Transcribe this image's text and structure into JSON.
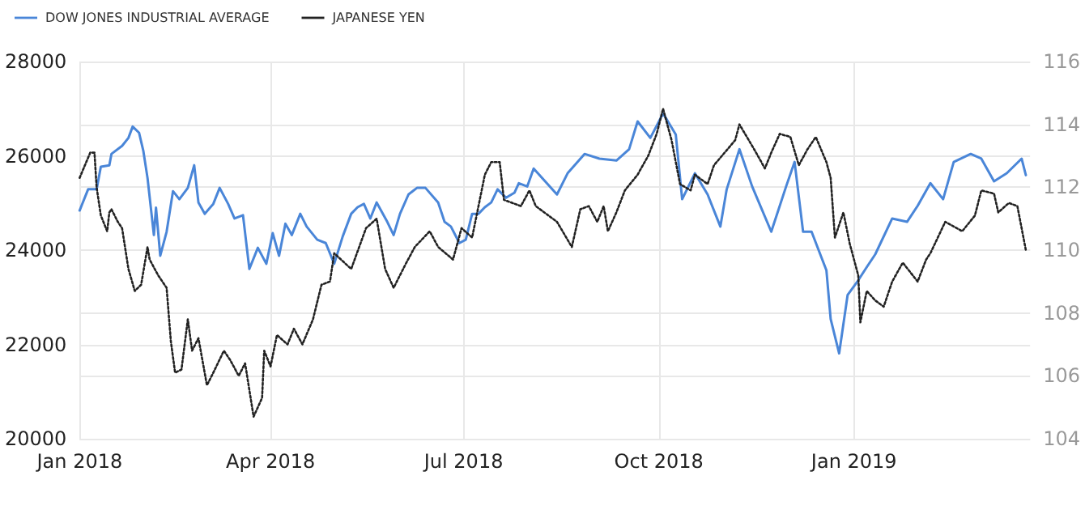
{
  "chart_data": {
    "type": "line",
    "legend": "top left",
    "grid": true,
    "marker": "none",
    "xlim": [
      "2018-01-01",
      "2019-03-25"
    ],
    "xticks": [
      {
        "value": "2018-01-01",
        "label": "Jan 2018"
      },
      {
        "value": "2018-04-01",
        "label": "Apr 2018"
      },
      {
        "value": "2018-07-01",
        "label": "Jul 2018"
      },
      {
        "value": "2018-10-01",
        "label": "Oct 2018"
      },
      {
        "value": "2019-01-01",
        "label": "Jan 2019"
      }
    ],
    "ylim": [
      20000,
      28000
    ],
    "yticks": [
      20000,
      22000,
      24000,
      26000,
      28000
    ],
    "y2lim": [
      104,
      116
    ],
    "y2ticks": [
      104,
      106,
      108,
      110,
      112,
      114,
      116
    ],
    "series": [
      {
        "name": "DOW JONES INDUSTRIAL AVERAGE",
        "color": "#4a86d8",
        "line_style": "solid",
        "x": [
          "2018-01-01",
          "2018-01-05",
          "2018-01-09",
          "2018-01-11",
          "2018-01-15",
          "2018-01-16",
          "2018-01-21",
          "2018-01-24",
          "2018-01-26",
          "2018-01-29",
          "2018-01-31",
          "2018-02-02",
          "2018-02-05",
          "2018-02-06",
          "2018-02-08",
          "2018-02-11",
          "2018-02-14",
          "2018-02-17",
          "2018-02-21",
          "2018-02-24",
          "2018-02-26",
          "2018-03-01",
          "2018-03-05",
          "2018-03-08",
          "2018-03-12",
          "2018-03-15",
          "2018-03-19",
          "2018-03-22",
          "2018-03-26",
          "2018-03-30",
          "2018-04-02",
          "2018-04-05",
          "2018-04-08",
          "2018-04-11",
          "2018-04-15",
          "2018-04-18",
          "2018-04-23",
          "2018-04-27",
          "2018-05-01",
          "2018-05-05",
          "2018-05-09",
          "2018-05-12",
          "2018-05-15",
          "2018-05-18",
          "2018-05-21",
          "2018-05-26",
          "2018-05-29",
          "2018-06-01",
          "2018-06-05",
          "2018-06-09",
          "2018-06-13",
          "2018-06-19",
          "2018-06-22",
          "2018-06-25",
          "2018-06-29",
          "2018-07-02",
          "2018-07-05",
          "2018-07-08",
          "2018-07-11",
          "2018-07-14",
          "2018-07-17",
          "2018-07-21",
          "2018-07-25",
          "2018-07-27",
          "2018-07-31",
          "2018-08-03",
          "2018-08-14",
          "2018-08-19",
          "2018-08-27",
          "2018-09-03",
          "2018-09-11",
          "2018-09-17",
          "2018-09-21",
          "2018-09-27",
          "2018-10-03",
          "2018-10-09",
          "2018-10-12",
          "2018-10-18",
          "2018-10-24",
          "2018-10-30",
          "2018-11-02",
          "2018-11-08",
          "2018-11-14",
          "2018-11-23",
          "2018-11-30",
          "2018-12-04",
          "2018-12-08",
          "2018-12-12",
          "2018-12-19",
          "2018-12-21",
          "2018-12-25",
          "2018-12-29",
          "2019-01-03",
          "2019-01-07",
          "2019-01-11",
          "2019-01-19",
          "2019-01-26",
          "2019-01-31",
          "2019-02-06",
          "2019-02-12",
          "2019-02-17",
          "2019-02-25",
          "2019-03-02",
          "2019-03-08",
          "2019-03-14",
          "2019-03-21",
          "2019-03-23"
        ],
        "values": [
          24840,
          25290,
          25290,
          25770,
          25800,
          26040,
          26210,
          26380,
          26620,
          26490,
          26110,
          25530,
          24320,
          24900,
          23880,
          24390,
          25250,
          25080,
          25320,
          25800,
          25010,
          24770,
          24980,
          25320,
          24980,
          24670,
          24740,
          23600,
          24050,
          23710,
          24360,
          23880,
          24560,
          24320,
          24770,
          24500,
          24220,
          24150,
          23710,
          24290,
          24770,
          24910,
          24980,
          24670,
          25010,
          24600,
          24320,
          24770,
          25180,
          25320,
          25320,
          25010,
          24600,
          24500,
          24150,
          24220,
          24770,
          24770,
          24910,
          25010,
          25290,
          25110,
          25220,
          25420,
          25350,
          25730,
          25180,
          25630,
          26040,
          25940,
          25900,
          26140,
          26730,
          26380,
          26900,
          26450,
          25080,
          25630,
          25180,
          24500,
          25290,
          26140,
          25350,
          24390,
          25350,
          25870,
          24390,
          24390,
          23570,
          22540,
          21810,
          23050,
          23360,
          23640,
          23910,
          24670,
          24600,
          24940,
          25420,
          25080,
          25870,
          26040,
          25940,
          25460,
          25630,
          25940,
          25590
        ]
      },
      {
        "name": "JAPANESE YEN",
        "color": "#222222",
        "axis": "y2",
        "line_style": "dotted",
        "x": [
          "2018-01-01",
          "2018-01-06",
          "2018-01-08",
          "2018-01-09",
          "2018-01-11",
          "2018-01-14",
          "2018-01-15",
          "2018-01-16",
          "2018-01-19",
          "2018-01-21",
          "2018-01-24",
          "2018-01-27",
          "2018-01-30",
          "2018-02-02",
          "2018-02-03",
          "2018-02-07",
          "2018-02-11",
          "2018-02-13",
          "2018-02-15",
          "2018-02-18",
          "2018-02-21",
          "2018-02-23",
          "2018-02-26",
          "2018-03-02",
          "2018-03-05",
          "2018-03-10",
          "2018-03-13",
          "2018-03-17",
          "2018-03-20",
          "2018-03-24",
          "2018-03-28",
          "2018-03-29",
          "2018-04-01",
          "2018-04-04",
          "2018-04-09",
          "2018-04-12",
          "2018-04-16",
          "2018-04-21",
          "2018-04-25",
          "2018-04-29",
          "2018-05-01",
          "2018-05-09",
          "2018-05-16",
          "2018-05-21",
          "2018-05-25",
          "2018-05-29",
          "2018-06-04",
          "2018-06-08",
          "2018-06-15",
          "2018-06-19",
          "2018-06-26",
          "2018-06-30",
          "2018-07-05",
          "2018-07-11",
          "2018-07-14",
          "2018-07-18",
          "2018-07-20",
          "2018-07-28",
          "2018-08-01",
          "2018-08-04",
          "2018-08-14",
          "2018-08-21",
          "2018-08-25",
          "2018-08-29",
          "2018-09-02",
          "2018-09-05",
          "2018-09-07",
          "2018-09-11",
          "2018-09-15",
          "2018-09-21",
          "2018-09-26",
          "2018-09-30",
          "2018-10-03",
          "2018-10-07",
          "2018-10-11",
          "2018-10-16",
          "2018-10-18",
          "2018-10-24",
          "2018-10-27",
          "2018-11-01",
          "2018-11-06",
          "2018-11-08",
          "2018-11-15",
          "2018-11-20",
          "2018-11-23",
          "2018-11-27",
          "2018-12-02",
          "2018-12-06",
          "2018-12-10",
          "2018-12-14",
          "2018-12-19",
          "2018-12-21",
          "2018-12-23",
          "2018-12-27",
          "2018-12-30",
          "2019-01-03",
          "2019-01-04",
          "2019-01-07",
          "2019-01-11",
          "2019-01-15",
          "2019-01-19",
          "2019-01-24",
          "2019-01-31",
          "2019-02-04",
          "2019-02-06",
          "2019-02-13",
          "2019-02-21",
          "2019-02-27",
          "2019-03-02",
          "2019-03-08",
          "2019-03-10",
          "2019-03-15",
          "2019-03-19",
          "2019-03-21",
          "2019-03-23"
        ],
        "values": [
          112.3,
          113.1,
          113.1,
          112.0,
          111.1,
          110.6,
          111.2,
          111.3,
          110.9,
          110.7,
          109.4,
          108.7,
          108.9,
          110.1,
          109.7,
          109.2,
          108.8,
          107.1,
          106.1,
          106.2,
          107.8,
          106.8,
          107.2,
          105.7,
          106.1,
          106.8,
          106.5,
          106.0,
          106.4,
          104.7,
          105.3,
          106.8,
          106.3,
          107.3,
          107.0,
          107.5,
          107.0,
          107.8,
          108.9,
          109.0,
          109.9,
          109.4,
          110.7,
          111.0,
          109.4,
          108.8,
          109.6,
          110.1,
          110.6,
          110.1,
          109.7,
          110.7,
          110.4,
          112.4,
          112.8,
          112.8,
          111.6,
          111.4,
          111.9,
          111.4,
          110.9,
          110.1,
          111.3,
          111.4,
          110.9,
          111.4,
          110.6,
          111.2,
          111.9,
          112.4,
          113.0,
          113.7,
          114.5,
          113.5,
          112.1,
          111.9,
          112.4,
          112.1,
          112.7,
          113.1,
          113.5,
          114.0,
          113.2,
          112.6,
          113.1,
          113.7,
          113.6,
          112.7,
          113.2,
          113.6,
          112.8,
          112.3,
          110.4,
          111.2,
          110.2,
          109.2,
          107.7,
          108.7,
          108.4,
          108.2,
          109.0,
          109.6,
          109.0,
          109.7,
          109.9,
          110.9,
          110.6,
          111.1,
          111.9,
          111.8,
          111.2,
          111.5,
          111.4,
          110.7,
          110.0
        ]
      }
    ]
  }
}
